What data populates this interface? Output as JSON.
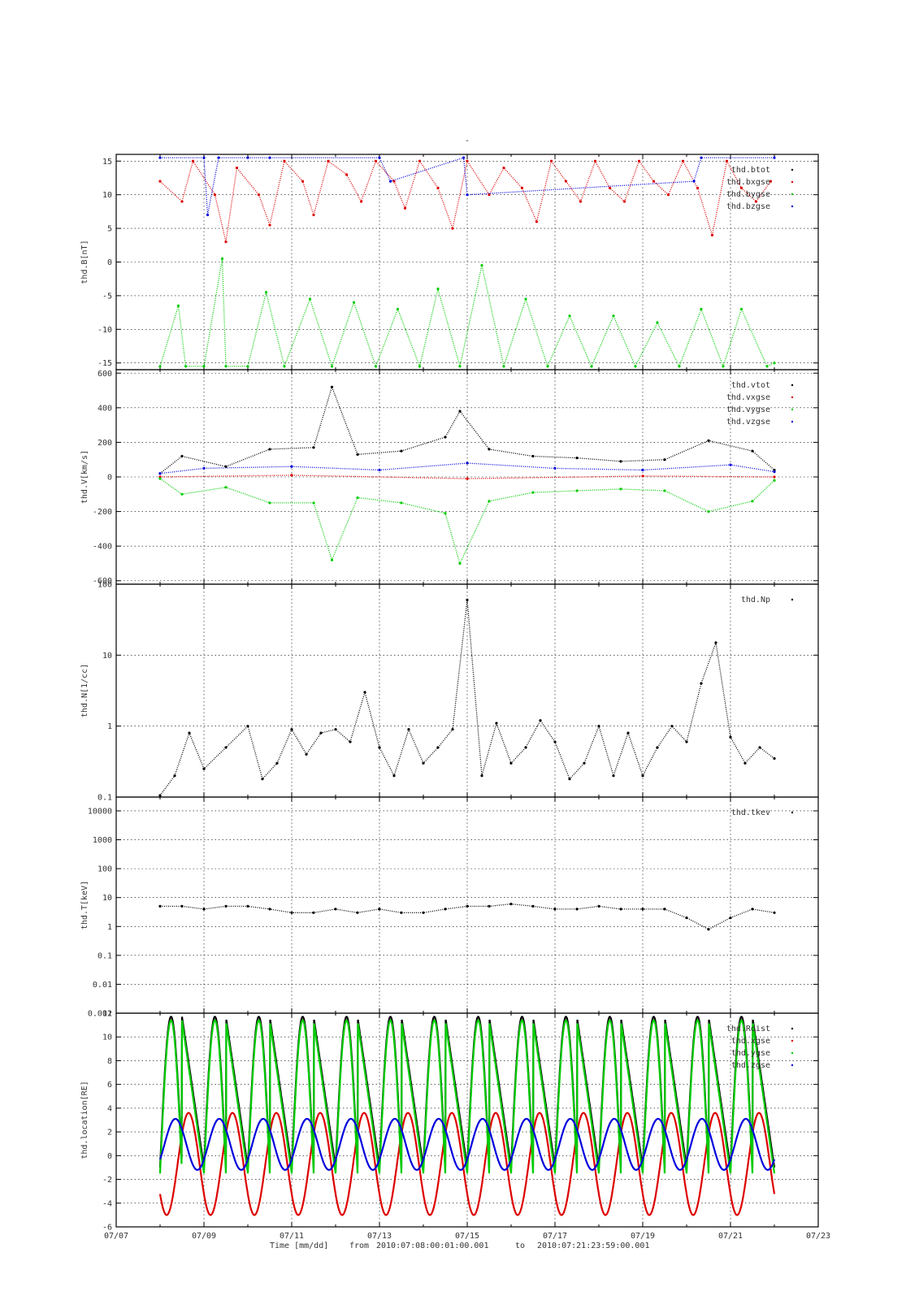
{
  "title": "-",
  "footer": {
    "time_label": "Time [mm/dd]",
    "from_label": "from",
    "from_value": "2010:07:08:00:01:00.001",
    "to_label": "to",
    "to_value": "2010:07:21:23:59:00.001"
  },
  "colors": {
    "black": "#000000",
    "red": "#dd0000",
    "green": "#00cc00",
    "blue": "#0000dd"
  },
  "chart_data": [
    {
      "type": "scatter",
      "title": "",
      "ylabel": "thd.B[nT]",
      "x_range": [
        "2010-07-07",
        "2010-07-23"
      ],
      "x_ticks": [
        "07/07",
        "07/09",
        "07/11",
        "07/13",
        "07/15",
        "07/17",
        "07/19",
        "07/21",
        "07/23"
      ],
      "ylim": [
        -16,
        16
      ],
      "y_ticks": [
        15,
        10,
        5,
        0,
        -5,
        -10,
        -15
      ],
      "y_scale": "linear",
      "grid": true,
      "legend_position": "top-right",
      "series": [
        {
          "name": "thd.btot",
          "color": "#000000",
          "note": "clipped above 16 nT"
        },
        {
          "name": "thd.bxgse",
          "color": "#dd0000",
          "x": [
            "07/08 00:00",
            "07/08 12:00",
            "07/08 18:00",
            "07/09 06:00",
            "07/09 12:00",
            "07/09 18:00",
            "07/10 06:00",
            "07/10 12:00",
            "07/10 20:00",
            "07/11 06:00",
            "07/11 12:00",
            "07/11 20:00",
            "07/12 06:00",
            "07/12 14:00",
            "07/12 22:00",
            "07/13 08:00",
            "07/13 14:00",
            "07/13 22:00",
            "07/14 08:00",
            "07/14 16:00",
            "07/15 00:00",
            "07/15 12:00",
            "07/15 20:00",
            "07/16 06:00",
            "07/16 14:00",
            "07/16 22:00",
            "07/17 06:00",
            "07/17 14:00",
            "07/17 22:00",
            "07/18 06:00",
            "07/18 14:00",
            "07/18 22:00",
            "07/19 06:00",
            "07/19 14:00",
            "07/19 22:00",
            "07/20 06:00",
            "07/20 14:00",
            "07/20 22:00",
            "07/21 06:00",
            "07/21 14:00",
            "07/21 22:00"
          ],
          "y": [
            12,
            9,
            15,
            10,
            3,
            14,
            10,
            5.5,
            15,
            12,
            7,
            15,
            13,
            9,
            15,
            12,
            8,
            15,
            11,
            5,
            15,
            10,
            14,
            11,
            6,
            15,
            12,
            9,
            15,
            11,
            9,
            15,
            12,
            10,
            15,
            11,
            4,
            15,
            11,
            9,
            12
          ]
        },
        {
          "name": "thd.bygse",
          "color": "#00cc00",
          "x": [
            "07/08 00:00",
            "07/08 10:00",
            "07/08 14:00",
            "07/09 00:00",
            "07/09 10:00",
            "07/09 12:00",
            "07/10 00:00",
            "07/10 10:00",
            "07/10 20:00",
            "07/11 10:00",
            "07/11 22:00",
            "07/12 10:00",
            "07/12 22:00",
            "07/13 10:00",
            "07/13 22:00",
            "07/14 08:00",
            "07/14 20:00",
            "07/15 08:00",
            "07/15 20:00",
            "07/16 08:00",
            "07/16 20:00",
            "07/17 08:00",
            "07/17 20:00",
            "07/18 08:00",
            "07/18 20:00",
            "07/19 08:00",
            "07/19 20:00",
            "07/20 08:00",
            "07/20 20:00",
            "07/21 06:00",
            "07/21 20:00",
            "07/22 00:00"
          ],
          "y": [
            -15.5,
            -6.5,
            -15.5,
            -15.5,
            0.5,
            -15.5,
            -15.5,
            -4.5,
            -15.5,
            -5.5,
            -15.5,
            -6,
            -15.5,
            -7,
            -15.5,
            -4,
            -15.5,
            -0.5,
            -15.5,
            -5.5,
            -15.5,
            -8,
            -15.5,
            -8,
            -15.5,
            -9,
            -15.5,
            -7,
            -15.5,
            -7,
            -15.5,
            -15
          ]
        },
        {
          "name": "thd.bzgse",
          "color": "#0000dd",
          "x": [
            "07/08 00:00",
            "07/09 00:00",
            "07/09 02:00",
            "07/09 08:00",
            "07/10 00:00",
            "07/10 12:00",
            "07/13 00:00",
            "07/13 06:00",
            "07/14 22:00",
            "07/15 00:00",
            "07/20 04:00",
            "07/20 08:00",
            "07/22 00:00"
          ],
          "y": [
            15.5,
            15.5,
            7,
            15.5,
            15.5,
            15.5,
            15.5,
            12,
            15.5,
            10,
            12,
            15.5,
            15.5
          ]
        }
      ]
    },
    {
      "type": "scatter",
      "title": "",
      "ylabel": "thd.V[km/s]",
      "x_range": [
        "2010-07-07",
        "2010-07-23"
      ],
      "ylim": [
        -620,
        620
      ],
      "y_ticks": [
        600,
        400,
        200,
        0,
        -200,
        -400,
        -600
      ],
      "y_scale": "linear",
      "grid": true,
      "legend_position": "top-right",
      "series": [
        {
          "name": "thd.vtot",
          "color": "#000000",
          "x": [
            "07/08 00:00",
            "07/08 12:00",
            "07/09 12:00",
            "07/10 12:00",
            "07/11 12:00",
            "07/11 22:00",
            "07/12 12:00",
            "07/13 12:00",
            "07/14 12:00",
            "07/14 20:00",
            "07/15 12:00",
            "07/16 12:00",
            "07/17 12:00",
            "07/18 12:00",
            "07/19 12:00",
            "07/20 12:00",
            "07/21 12:00",
            "07/22 00:00"
          ],
          "y": [
            20,
            120,
            60,
            160,
            170,
            520,
            130,
            150,
            230,
            380,
            160,
            120,
            110,
            90,
            100,
            210,
            150,
            40
          ]
        },
        {
          "name": "thd.vxgse",
          "color": "#dd0000",
          "x": [
            "07/08 00:00",
            "07/11 00:00",
            "07/15 00:00",
            "07/19 00:00",
            "07/22 00:00"
          ],
          "y": [
            0,
            10,
            -10,
            5,
            0
          ]
        },
        {
          "name": "thd.vygse",
          "color": "#00cc00",
          "x": [
            "07/08 00:00",
            "07/08 12:00",
            "07/09 12:00",
            "07/10 12:00",
            "07/11 12:00",
            "07/11 22:00",
            "07/12 12:00",
            "07/13 12:00",
            "07/14 12:00",
            "07/14 20:00",
            "07/15 12:00",
            "07/16 12:00",
            "07/17 12:00",
            "07/18 12:00",
            "07/19 12:00",
            "07/20 12:00",
            "07/21 12:00",
            "07/22 00:00"
          ],
          "y": [
            -10,
            -100,
            -60,
            -150,
            -150,
            -480,
            -120,
            -150,
            -210,
            -500,
            -140,
            -90,
            -80,
            -70,
            -80,
            -200,
            -140,
            -20
          ]
        },
        {
          "name": "thd.vzgse",
          "color": "#0000dd",
          "x": [
            "07/08 00:00",
            "07/09 00:00",
            "07/11 00:00",
            "07/13 00:00",
            "07/15 00:00",
            "07/17 00:00",
            "07/19 00:00",
            "07/21 00:00",
            "07/22 00:00"
          ],
          "y": [
            20,
            50,
            60,
            40,
            80,
            50,
            40,
            70,
            30
          ]
        }
      ]
    },
    {
      "type": "scatter",
      "title": "",
      "ylabel": "thd.N[1/cc]",
      "x_range": [
        "2010-07-07",
        "2010-07-23"
      ],
      "ylim": [
        0.1,
        100
      ],
      "y_ticks": [
        100,
        10,
        1,
        0.1
      ],
      "y_scale": "log",
      "grid": true,
      "legend_position": "top-right",
      "series": [
        {
          "name": "thd.Np",
          "color": "#000000",
          "x": [
            "07/08 00:00",
            "07/08 08:00",
            "07/08 16:00",
            "07/09 00:00",
            "07/09 12:00",
            "07/10 00:00",
            "07/10 08:00",
            "07/10 16:00",
            "07/11 00:00",
            "07/11 08:00",
            "07/11 16:00",
            "07/12 00:00",
            "07/12 08:00",
            "07/12 16:00",
            "07/13 00:00",
            "07/13 08:00",
            "07/13 16:00",
            "07/14 00:00",
            "07/14 08:00",
            "07/14 16:00",
            "07/15 00:00",
            "07/15 08:00",
            "07/15 16:00",
            "07/16 00:00",
            "07/16 08:00",
            "07/16 16:00",
            "07/17 00:00",
            "07/17 08:00",
            "07/17 16:00",
            "07/18 00:00",
            "07/18 08:00",
            "07/18 16:00",
            "07/19 00:00",
            "07/19 08:00",
            "07/19 16:00",
            "07/20 00:00",
            "07/20 08:00",
            "07/20 16:00",
            "07/21 00:00",
            "07/21 08:00",
            "07/21 16:00",
            "07/22 00:00"
          ],
          "y": [
            0.1,
            0.2,
            0.8,
            0.25,
            0.5,
            1.0,
            0.18,
            0.3,
            0.9,
            0.4,
            0.8,
            0.9,
            0.6,
            3,
            0.5,
            0.2,
            0.9,
            0.3,
            0.5,
            0.9,
            60,
            0.2,
            1.1,
            0.3,
            0.5,
            1.2,
            0.6,
            0.18,
            0.3,
            1.0,
            0.2,
            0.8,
            0.2,
            0.5,
            1.0,
            0.6,
            4,
            15,
            0.7,
            0.3,
            0.5,
            0.35
          ]
        }
      ]
    },
    {
      "type": "scatter",
      "title": "",
      "ylabel": "thd.T[keV]",
      "x_range": [
        "2010-07-07",
        "2010-07-23"
      ],
      "ylim": [
        0.001,
        30000
      ],
      "y_ticks": [
        10000,
        1000,
        100,
        10,
        1,
        0.1,
        0.01,
        0.001
      ],
      "y_tick_labels": [
        "10000",
        "1000",
        "100",
        "10",
        "1",
        "0.1",
        "0.01",
        "0.001"
      ],
      "y_scale": "log",
      "grid": true,
      "legend_position": "top-right",
      "series": [
        {
          "name": "thd.tkev",
          "color": "#000000",
          "x": [
            "07/08 00:00",
            "07/08 12:00",
            "07/09 00:00",
            "07/09 12:00",
            "07/10 00:00",
            "07/10 12:00",
            "07/11 00:00",
            "07/11 12:00",
            "07/12 00:00",
            "07/12 12:00",
            "07/13 00:00",
            "07/13 12:00",
            "07/14 00:00",
            "07/14 12:00",
            "07/15 00:00",
            "07/15 12:00",
            "07/16 00:00",
            "07/16 12:00",
            "07/17 00:00",
            "07/17 12:00",
            "07/18 00:00",
            "07/18 12:00",
            "07/19 00:00",
            "07/19 12:00",
            "07/20 00:00",
            "07/20 12:00",
            "07/21 00:00",
            "07/21 12:00",
            "07/22 00:00"
          ],
          "y": [
            5,
            5,
            4,
            5,
            5,
            4,
            3,
            3,
            4,
            3,
            4,
            3,
            3,
            4,
            5,
            5,
            6,
            5,
            4,
            4,
            5,
            4,
            4,
            4,
            2,
            0.8,
            2,
            4,
            3
          ]
        }
      ]
    },
    {
      "type": "line",
      "title": "",
      "ylabel": "thd.location[RE]",
      "x_range": [
        "2010-07-07",
        "2010-07-23"
      ],
      "ylim": [
        -6,
        12
      ],
      "y_ticks": [
        12,
        10,
        8,
        6,
        4,
        2,
        0,
        -2,
        -4,
        -6
      ],
      "y_scale": "linear",
      "grid": true,
      "legend_position": "top-right",
      "orbit_start": "2010-07-08",
      "orbit_end": "2010-07-22",
      "orbit_period_days": 1.0,
      "series": [
        {
          "name": "thd.Rdist",
          "color": "#000000",
          "peak": 11.7,
          "trough": -1.0
        },
        {
          "name": "thd.xgse",
          "color": "#dd0000",
          "max": 3.6,
          "min": -5.0
        },
        {
          "name": "thd.ygse",
          "color": "#00cc00",
          "peak": 11.4,
          "trough": -1.5
        },
        {
          "name": "thd.zgse",
          "color": "#0000dd",
          "max": 3.1,
          "min": -1.2
        }
      ]
    }
  ]
}
